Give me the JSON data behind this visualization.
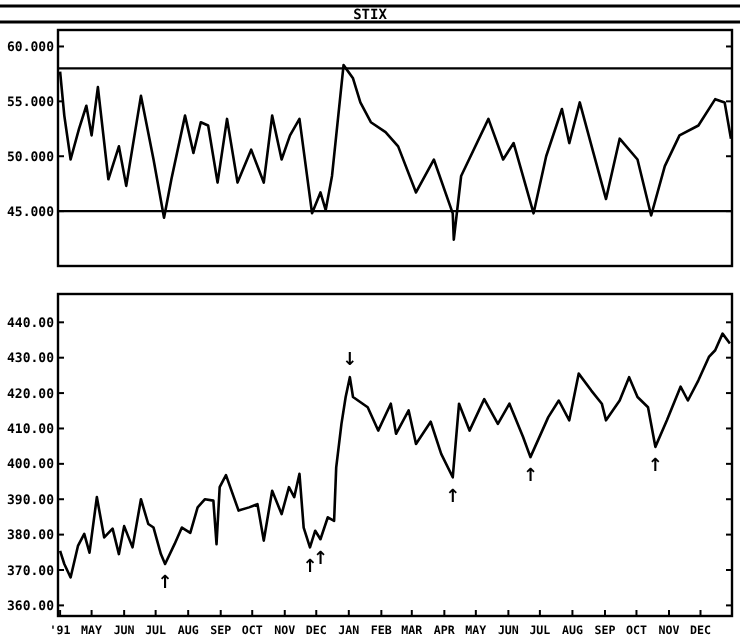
{
  "chart_data": [
    {
      "type": "line",
      "title": "STIX",
      "xlim": [
        "1991-03-30",
        "1992-12-31"
      ],
      "ylim": [
        40,
        61.5
      ],
      "yticks": [
        {
          "value": 45,
          "label": "45.000"
        },
        {
          "value": 50,
          "label": "50.000"
        },
        {
          "value": 55,
          "label": "55.000"
        },
        {
          "value": 60,
          "label": "60.000"
        }
      ],
      "tick_labels": "y",
      "grid": false,
      "marker": "none",
      "line_style": "solid",
      "ref_lines": [
        {
          "axis": "y",
          "value": 58,
          "color": "#000000"
        },
        {
          "axis": "y",
          "value": 45,
          "color": "#000000"
        }
      ],
      "series": [
        {
          "color": "#000000",
          "x": [
            "1991-04-01",
            "1991-04-05",
            "1991-04-11",
            "1991-04-19",
            "1991-04-26",
            "1991-05-01",
            "1991-05-07",
            "1991-05-17",
            "1991-05-27",
            "1991-06-03",
            "1991-06-17",
            "1991-06-29",
            "1991-07-09",
            "1991-07-16",
            "1991-07-29",
            "1991-08-06",
            "1991-08-13",
            "1991-08-20",
            "1991-08-29",
            "1991-09-07",
            "1991-09-17",
            "1991-09-30",
            "1991-10-12",
            "1991-10-20",
            "1991-10-29",
            "1991-11-06",
            "1991-11-15",
            "1991-11-27",
            "1991-12-05",
            "1991-12-10",
            "1991-12-16",
            "1991-12-27",
            "1992-01-05",
            "1992-01-12",
            "1992-01-22",
            "1992-02-05",
            "1992-02-17",
            "1992-03-05",
            "1992-03-22",
            "1992-04-09",
            "1992-04-10",
            "1992-04-17",
            "1992-05-13",
            "1992-05-27",
            "1992-06-06",
            "1992-06-25",
            "1992-07-07",
            "1992-07-22",
            "1992-07-29",
            "1992-08-08",
            "1992-08-21",
            "1992-09-02",
            "1992-09-15",
            "1992-10-02",
            "1992-10-15",
            "1992-10-28",
            "1992-11-11",
            "1992-11-29",
            "1992-12-15",
            "1992-12-24",
            "1992-12-30"
          ],
          "values": [
            57.7,
            53.7,
            49.7,
            52.5,
            54.6,
            51.9,
            56.3,
            47.9,
            50.9,
            47.3,
            55.5,
            49.7,
            44.4,
            47.9,
            53.7,
            50.3,
            53.1,
            52.8,
            47.6,
            53.4,
            47.6,
            50.6,
            47.6,
            53.7,
            49.7,
            51.9,
            53.4,
            44.8,
            46.7,
            45.1,
            48.2,
            58.3,
            57.1,
            54.9,
            53.1,
            52.2,
            50.9,
            46.7,
            49.7,
            44.8,
            42.4,
            48.2,
            53.4,
            49.7,
            51.2,
            44.8,
            50.0,
            54.3,
            51.2,
            54.9,
            50.3,
            46.1,
            51.6,
            49.7,
            44.6,
            49.1,
            51.9,
            52.8,
            55.2,
            54.9,
            51.6
          ]
        }
      ]
    },
    {
      "type": "line",
      "xlim": [
        "1991-03-30",
        "1992-12-31"
      ],
      "ylim": [
        357,
        448
      ],
      "xticks": [
        {
          "value": "1991-04-01",
          "label": "'91"
        },
        {
          "value": "1991-05-01",
          "label": "MAY"
        },
        {
          "value": "1991-06-01",
          "label": "JUN"
        },
        {
          "value": "1991-07-01",
          "label": "JUL"
        },
        {
          "value": "1991-08-01",
          "label": "AUG"
        },
        {
          "value": "1991-09-01",
          "label": "SEP"
        },
        {
          "value": "1991-10-01",
          "label": "OCT"
        },
        {
          "value": "1991-11-01",
          "label": "NOV"
        },
        {
          "value": "1991-12-01",
          "label": "DEC"
        },
        {
          "value": "1992-01-01",
          "label": "JAN"
        },
        {
          "value": "1992-02-01",
          "label": "FEB"
        },
        {
          "value": "1992-03-01",
          "label": "MAR"
        },
        {
          "value": "1992-04-01",
          "label": "APR"
        },
        {
          "value": "1992-05-01",
          "label": "MAY"
        },
        {
          "value": "1992-06-01",
          "label": "JUN"
        },
        {
          "value": "1992-07-01",
          "label": "JUL"
        },
        {
          "value": "1992-08-01",
          "label": "AUG"
        },
        {
          "value": "1992-09-01",
          "label": "SEP"
        },
        {
          "value": "1992-10-01",
          "label": "OCT"
        },
        {
          "value": "1992-11-01",
          "label": "NOV"
        },
        {
          "value": "1992-12-01",
          "label": "DEC"
        }
      ],
      "yticks": [
        {
          "value": 360,
          "label": "360.00"
        },
        {
          "value": 370,
          "label": "370.00"
        },
        {
          "value": 380,
          "label": "380.00"
        },
        {
          "value": 390,
          "label": "390.00"
        },
        {
          "value": 400,
          "label": "400.00"
        },
        {
          "value": 410,
          "label": "410.00"
        },
        {
          "value": 420,
          "label": "420.00"
        },
        {
          "value": 430,
          "label": "430.00"
        },
        {
          "value": 440,
          "label": "440.00"
        }
      ],
      "grid": false,
      "marker": "none",
      "line_style": "solid",
      "annotations": [
        {
          "text": "↑",
          "x": "1991-07-10",
          "y": 371.7
        },
        {
          "text": "↑",
          "x": "1991-11-25",
          "y": 376.4
        },
        {
          "text": "↑",
          "x": "1991-12-05",
          "y": 378.7
        },
        {
          "text": "↓",
          "x": "1992-01-02",
          "y": 424.5
        },
        {
          "text": "↑",
          "x": "1992-04-09",
          "y": 396.2
        },
        {
          "text": "↑",
          "x": "1992-06-22",
          "y": 401.9
        },
        {
          "text": "↑",
          "x": "1992-10-19",
          "y": 404.8
        }
      ],
      "series": [
        {
          "color": "#000000",
          "x": [
            "1991-04-01",
            "1991-04-05",
            "1991-04-11",
            "1991-04-18",
            "1991-04-24",
            "1991-04-29",
            "1991-05-06",
            "1991-05-13",
            "1991-05-21",
            "1991-05-27",
            "1991-06-01",
            "1991-06-09",
            "1991-06-17",
            "1991-06-24",
            "1991-06-29",
            "1991-07-06",
            "1991-07-10",
            "1991-07-19",
            "1991-07-26",
            "1991-08-03",
            "1991-08-10",
            "1991-08-17",
            "1991-08-25",
            "1991-08-28",
            "1991-08-31",
            "1991-09-06",
            "1991-09-18",
            "1991-09-28",
            "1991-10-06",
            "1991-10-12",
            "1991-10-20",
            "1991-10-29",
            "1991-11-05",
            "1991-11-10",
            "1991-11-15",
            "1991-11-19",
            "1991-11-25",
            "1991-11-30",
            "1991-12-05",
            "1991-12-12",
            "1991-12-18",
            "1991-12-20",
            "1991-12-25",
            "1991-12-29",
            "1992-01-02",
            "1992-01-05",
            "1992-01-19",
            "1992-01-29",
            "1992-02-10",
            "1992-02-15",
            "1992-02-27",
            "1992-03-05",
            "1992-03-19",
            "1992-03-29",
            "1992-04-09",
            "1992-04-15",
            "1992-04-25",
            "1992-05-09",
            "1992-05-22",
            "1992-06-02",
            "1992-06-15",
            "1992-06-22",
            "1992-07-09",
            "1992-07-19",
            "1992-07-29",
            "1992-08-07",
            "1992-08-19",
            "1992-08-29",
            "1992-09-02",
            "1992-09-15",
            "1992-09-24",
            "1992-10-02",
            "1992-10-12",
            "1992-10-19",
            "1992-10-30",
            "1992-11-12",
            "1992-11-19",
            "1992-11-29",
            "1992-12-09",
            "1992-12-15",
            "1992-12-22",
            "1992-12-29"
          ],
          "values": [
            375.4,
            371.7,
            367.9,
            376.8,
            380.2,
            374.9,
            390.6,
            379.2,
            381.7,
            374.5,
            382.4,
            376.4,
            390,
            383,
            382,
            374.5,
            371.7,
            377.3,
            382,
            380.5,
            387.7,
            390,
            389.6,
            377.3,
            393.4,
            396.8,
            386.8,
            387.7,
            388.6,
            378.3,
            392.4,
            385.8,
            393.4,
            390.6,
            397.2,
            382,
            376.4,
            381.1,
            378.7,
            384.9,
            383.9,
            399,
            411.3,
            418.9,
            424.5,
            418.9,
            416,
            409.4,
            417,
            408.5,
            415.1,
            405.6,
            411.9,
            402.8,
            396.2,
            417,
            409.4,
            418.3,
            411.3,
            417,
            407.6,
            401.9,
            413.2,
            417.9,
            412.3,
            425.5,
            420.7,
            417,
            412.3,
            417.9,
            424.5,
            418.9,
            416,
            404.8,
            412.3,
            421.8,
            417.9,
            423.6,
            430.2,
            432.1,
            436.8,
            434
          ]
        }
      ]
    }
  ]
}
